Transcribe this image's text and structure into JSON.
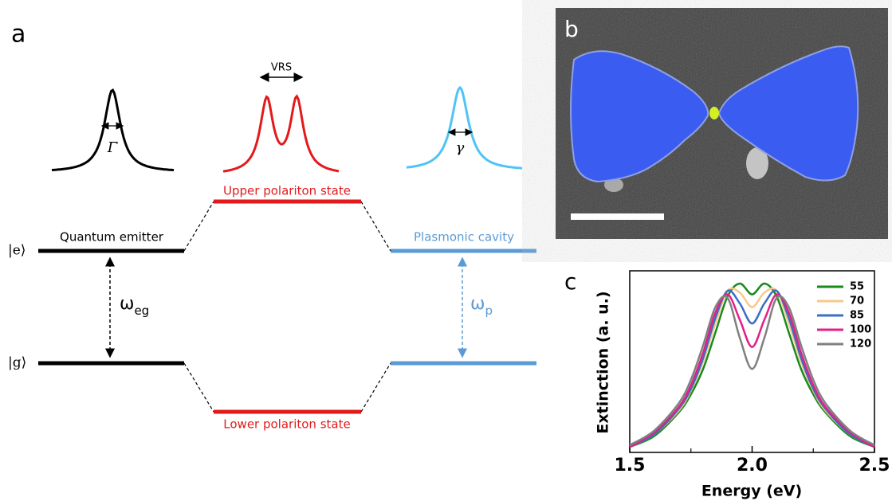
{
  "panel_a": {
    "label": "a",
    "emitter": {
      "name": "Quantum emitter",
      "width": "Γ",
      "excited": "|e⟩",
      "ground": "|g⟩",
      "transition": "ω",
      "transition_sub": "eg"
    },
    "cavity": {
      "name": "Plasmonic cavity",
      "width": "γ",
      "transition": "ω",
      "transition_sub": "p"
    },
    "polaritons": {
      "splitting": "VRS",
      "upper": "Upper polariton state",
      "lower": "Lower polariton state"
    }
  },
  "panel_b": {
    "label": "b"
  },
  "chart_data": {
    "type": "line",
    "panel_label": "c",
    "xlabel": "Energy (eV)",
    "ylabel": "Extinction (a. u.)",
    "x": [
      1.5,
      1.6,
      1.7,
      1.75,
      1.8,
      1.85,
      1.9,
      1.95,
      2.0,
      2.05,
      2.1,
      2.15,
      2.2,
      2.25,
      2.3,
      2.4,
      2.5
    ],
    "series": [
      {
        "name": "55",
        "color": "#1a8a1a",
        "values": [
          0.03,
          0.09,
          0.22,
          0.32,
          0.46,
          0.66,
          0.86,
          0.93,
          0.87,
          0.93,
          0.86,
          0.66,
          0.46,
          0.32,
          0.22,
          0.09,
          0.03
        ]
      },
      {
        "name": "70",
        "color": "#f9c88a",
        "values": [
          0.03,
          0.1,
          0.23,
          0.34,
          0.5,
          0.71,
          0.89,
          0.88,
          0.8,
          0.88,
          0.89,
          0.71,
          0.5,
          0.34,
          0.23,
          0.1,
          0.03
        ]
      },
      {
        "name": "85",
        "color": "#3a6fc4",
        "values": [
          0.03,
          0.1,
          0.24,
          0.35,
          0.52,
          0.74,
          0.89,
          0.82,
          0.71,
          0.82,
          0.89,
          0.74,
          0.52,
          0.35,
          0.24,
          0.1,
          0.03
        ]
      },
      {
        "name": "100",
        "color": "#e0218a",
        "values": [
          0.03,
          0.11,
          0.25,
          0.37,
          0.55,
          0.77,
          0.87,
          0.73,
          0.58,
          0.73,
          0.87,
          0.77,
          0.55,
          0.37,
          0.25,
          0.11,
          0.03
        ]
      },
      {
        "name": "120",
        "color": "#808080",
        "values": [
          0.04,
          0.12,
          0.27,
          0.4,
          0.59,
          0.8,
          0.85,
          0.63,
          0.46,
          0.63,
          0.85,
          0.8,
          0.59,
          0.4,
          0.27,
          0.12,
          0.04
        ]
      }
    ],
    "xlim": [
      1.5,
      2.5
    ],
    "ylim": [
      0,
      1
    ],
    "xticks": [
      1.5,
      {
        "value": 2,
        "label": "2.0"
      },
      2.5
    ],
    "xminorticks": [
      1.75,
      2.25
    ],
    "legend": "upper right"
  }
}
